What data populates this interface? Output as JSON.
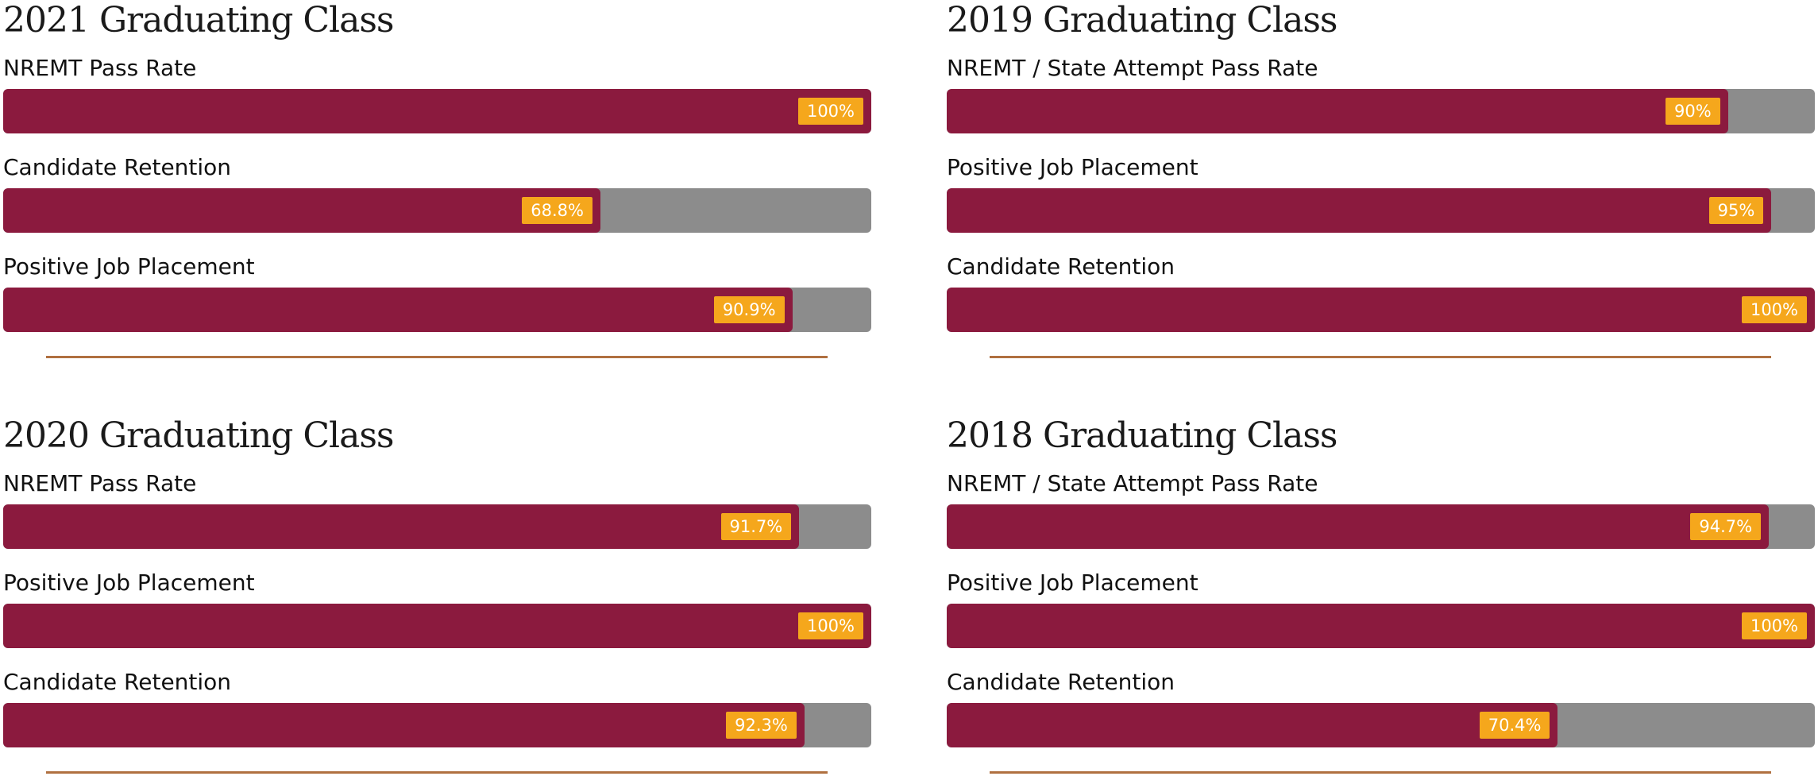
{
  "colors": {
    "fill": "#8b1a3e",
    "track": "#8c8c8c",
    "badge": "#f5a71c",
    "divider": "#b07040"
  },
  "panels": [
    {
      "title": "2021 Graduating Class",
      "stats": [
        {
          "label": "NREMT Pass Rate",
          "percent_text": "100%",
          "fraction": 1.0
        },
        {
          "label": "Candidate Retention",
          "percent_text": "68.8%",
          "fraction": 0.688
        },
        {
          "label": "Positive Job Placement",
          "percent_text": "90.9%",
          "fraction": 0.909
        }
      ]
    },
    {
      "title": "2019 Graduating Class",
      "stats": [
        {
          "label": "NREMT / State Attempt Pass Rate",
          "percent_text": "90%",
          "fraction": 0.9
        },
        {
          "label": "Positive Job Placement",
          "percent_text": "95%",
          "fraction": 0.95
        },
        {
          "label": "Candidate Retention",
          "percent_text": "100%",
          "fraction": 1.0
        }
      ]
    },
    {
      "title": "2020 Graduating Class",
      "stats": [
        {
          "label": "NREMT Pass Rate",
          "percent_text": "91.7%",
          "fraction": 0.917
        },
        {
          "label": "Positive Job Placement",
          "percent_text": "100%",
          "fraction": 1.0
        },
        {
          "label": "Candidate Retention",
          "percent_text": "92.3%",
          "fraction": 0.923
        }
      ]
    },
    {
      "title": "2018 Graduating Class",
      "stats": [
        {
          "label": "NREMT / State Attempt Pass Rate",
          "percent_text": "94.7%",
          "fraction": 0.947
        },
        {
          "label": "Positive Job Placement",
          "percent_text": "100%",
          "fraction": 1.0
        },
        {
          "label": "Candidate Retention",
          "percent_text": "70.4%",
          "fraction": 0.704
        }
      ]
    }
  ]
}
